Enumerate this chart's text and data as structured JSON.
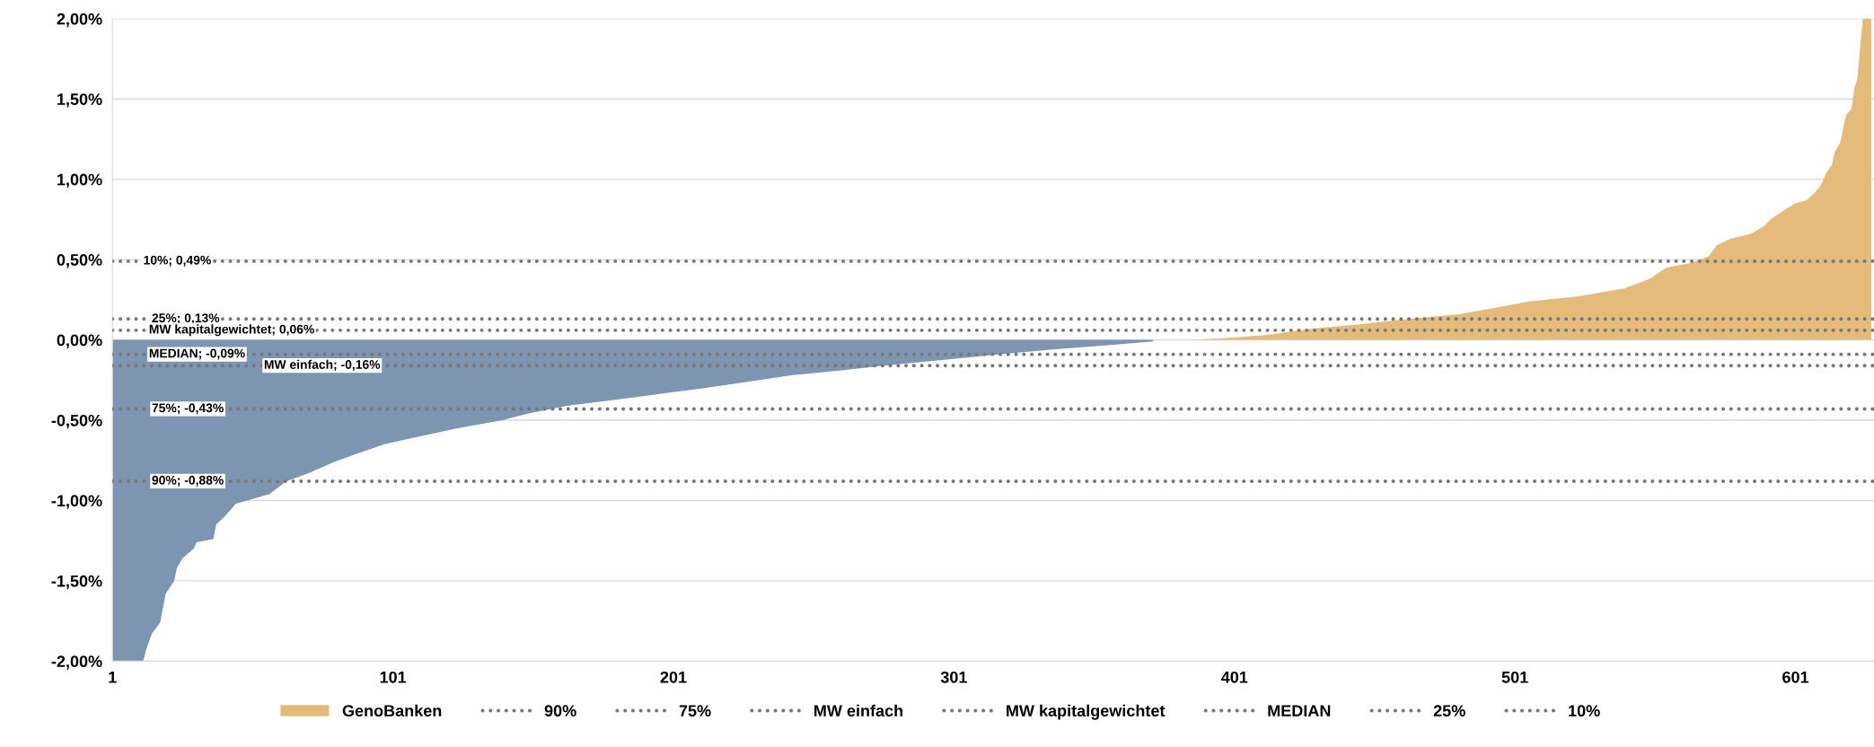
{
  "chart_data": {
    "type": "area",
    "xlim": [
      1,
      629
    ],
    "xticks": [
      1,
      101,
      201,
      301,
      401,
      501,
      601
    ],
    "ylim": [
      -2,
      2
    ],
    "yticks": [
      {
        "value": -2,
        "label": "-2,00%"
      },
      {
        "value": -1.5,
        "label": "-1,50%"
      },
      {
        "value": -1,
        "label": "-1,00%"
      },
      {
        "value": -0.5,
        "label": "-0,50%"
      },
      {
        "value": 0,
        "label": "0,00%"
      },
      {
        "value": 0.5,
        "label": "0,50%"
      },
      {
        "value": 1,
        "label": "1,00%"
      },
      {
        "value": 1.5,
        "label": "1,50%"
      },
      {
        "value": 2,
        "label": "2,00%"
      }
    ],
    "grid": "y",
    "legend": "bottom",
    "series": [
      {
        "color": "#7d95b1",
        "x": [
          1,
          12,
          13,
          15,
          18,
          20,
          23,
          24,
          26,
          30,
          31,
          37,
          38,
          41,
          45,
          49,
          57,
          63,
          71,
          80,
          88,
          98,
          108,
          124,
          140,
          149,
          163,
          186,
          199,
          212,
          228,
          243,
          261,
          276,
          300,
          317,
          336,
          358,
          372
        ],
        "values": [
          -2.0,
          -2.0,
          -1.93,
          -1.83,
          -1.76,
          -1.58,
          -1.5,
          -1.42,
          -1.36,
          -1.3,
          -1.26,
          -1.24,
          -1.15,
          -1.1,
          -1.02,
          -1.0,
          -0.96,
          -0.88,
          -0.83,
          -0.76,
          -0.71,
          -0.65,
          -0.61,
          -0.55,
          -0.5,
          -0.46,
          -0.41,
          -0.36,
          -0.33,
          -0.3,
          -0.26,
          -0.22,
          -0.19,
          -0.16,
          -0.12,
          -0.09,
          -0.06,
          -0.03,
          -0.01
        ]
      },
      {
        "name": "GenoBanken",
        "color": "#e4bb7a",
        "x": [
          387,
          397,
          412,
          429,
          447,
          463,
          481,
          494,
          506,
          523,
          540,
          549,
          555,
          564,
          570,
          573,
          578,
          585,
          590,
          592,
          598,
          601,
          605,
          608,
          610,
          612,
          614,
          615,
          617,
          619,
          621,
          622,
          623,
          625,
          628
        ],
        "values": [
          0.0,
          0.01,
          0.03,
          0.07,
          0.1,
          0.13,
          0.16,
          0.2,
          0.24,
          0.27,
          0.32,
          0.38,
          0.45,
          0.48,
          0.52,
          0.59,
          0.63,
          0.66,
          0.71,
          0.75,
          0.82,
          0.85,
          0.87,
          0.92,
          0.96,
          1.04,
          1.09,
          1.17,
          1.23,
          1.4,
          1.44,
          1.57,
          1.62,
          2.0,
          2.0
        ]
      },
      {
        "type": "line",
        "name": "90%",
        "color": "#777777",
        "line_style": "dotted",
        "x": [
          1,
          629
        ],
        "values": [
          -0.88,
          -0.88
        ]
      },
      {
        "type": "line",
        "name": "75%",
        "color": "#777777",
        "line_style": "dotted",
        "x": [
          1,
          629
        ],
        "values": [
          -0.43,
          -0.43
        ]
      },
      {
        "type": "line",
        "name": "MW einfach",
        "color": "#777777",
        "line_style": "dotted",
        "x": [
          1,
          629
        ],
        "values": [
          -0.16,
          -0.16
        ]
      },
      {
        "type": "line",
        "name": "MW kapitalgewichtet",
        "color": "#777777",
        "line_style": "dotted",
        "x": [
          1,
          629
        ],
        "values": [
          0.06,
          0.06
        ]
      },
      {
        "type": "line",
        "name": "MEDIAN",
        "color": "#777777",
        "line_style": "dotted",
        "x": [
          1,
          629
        ],
        "values": [
          -0.09,
          -0.09
        ]
      },
      {
        "type": "line",
        "name": "25%",
        "color": "#777777",
        "line_style": "dotted",
        "x": [
          1,
          629
        ],
        "values": [
          0.13,
          0.13
        ]
      },
      {
        "type": "line",
        "name": "10%",
        "color": "#777777",
        "line_style": "dotted",
        "x": [
          1,
          629
        ],
        "values": [
          0.49,
          0.49
        ]
      }
    ],
    "annotations": [
      {
        "text": "10%; 0,49%",
        "x": 12,
        "y": 0.49
      },
      {
        "text": "25%; 0,13%",
        "x": 15,
        "y": 0.13
      },
      {
        "text": "MW kapitalgewichtet; 0,06%",
        "x": 14,
        "y": 0.06
      },
      {
        "text": "MEDIAN; -0,09%",
        "x": 14,
        "y": -0.09
      },
      {
        "text": "MW einfach; -0,16%",
        "x": 55,
        "y": -0.16
      },
      {
        "text": "75%; -0,43%",
        "x": 15,
        "y": -0.43
      },
      {
        "text": "90%; -0,88%",
        "x": 15,
        "y": -0.88
      }
    ]
  }
}
